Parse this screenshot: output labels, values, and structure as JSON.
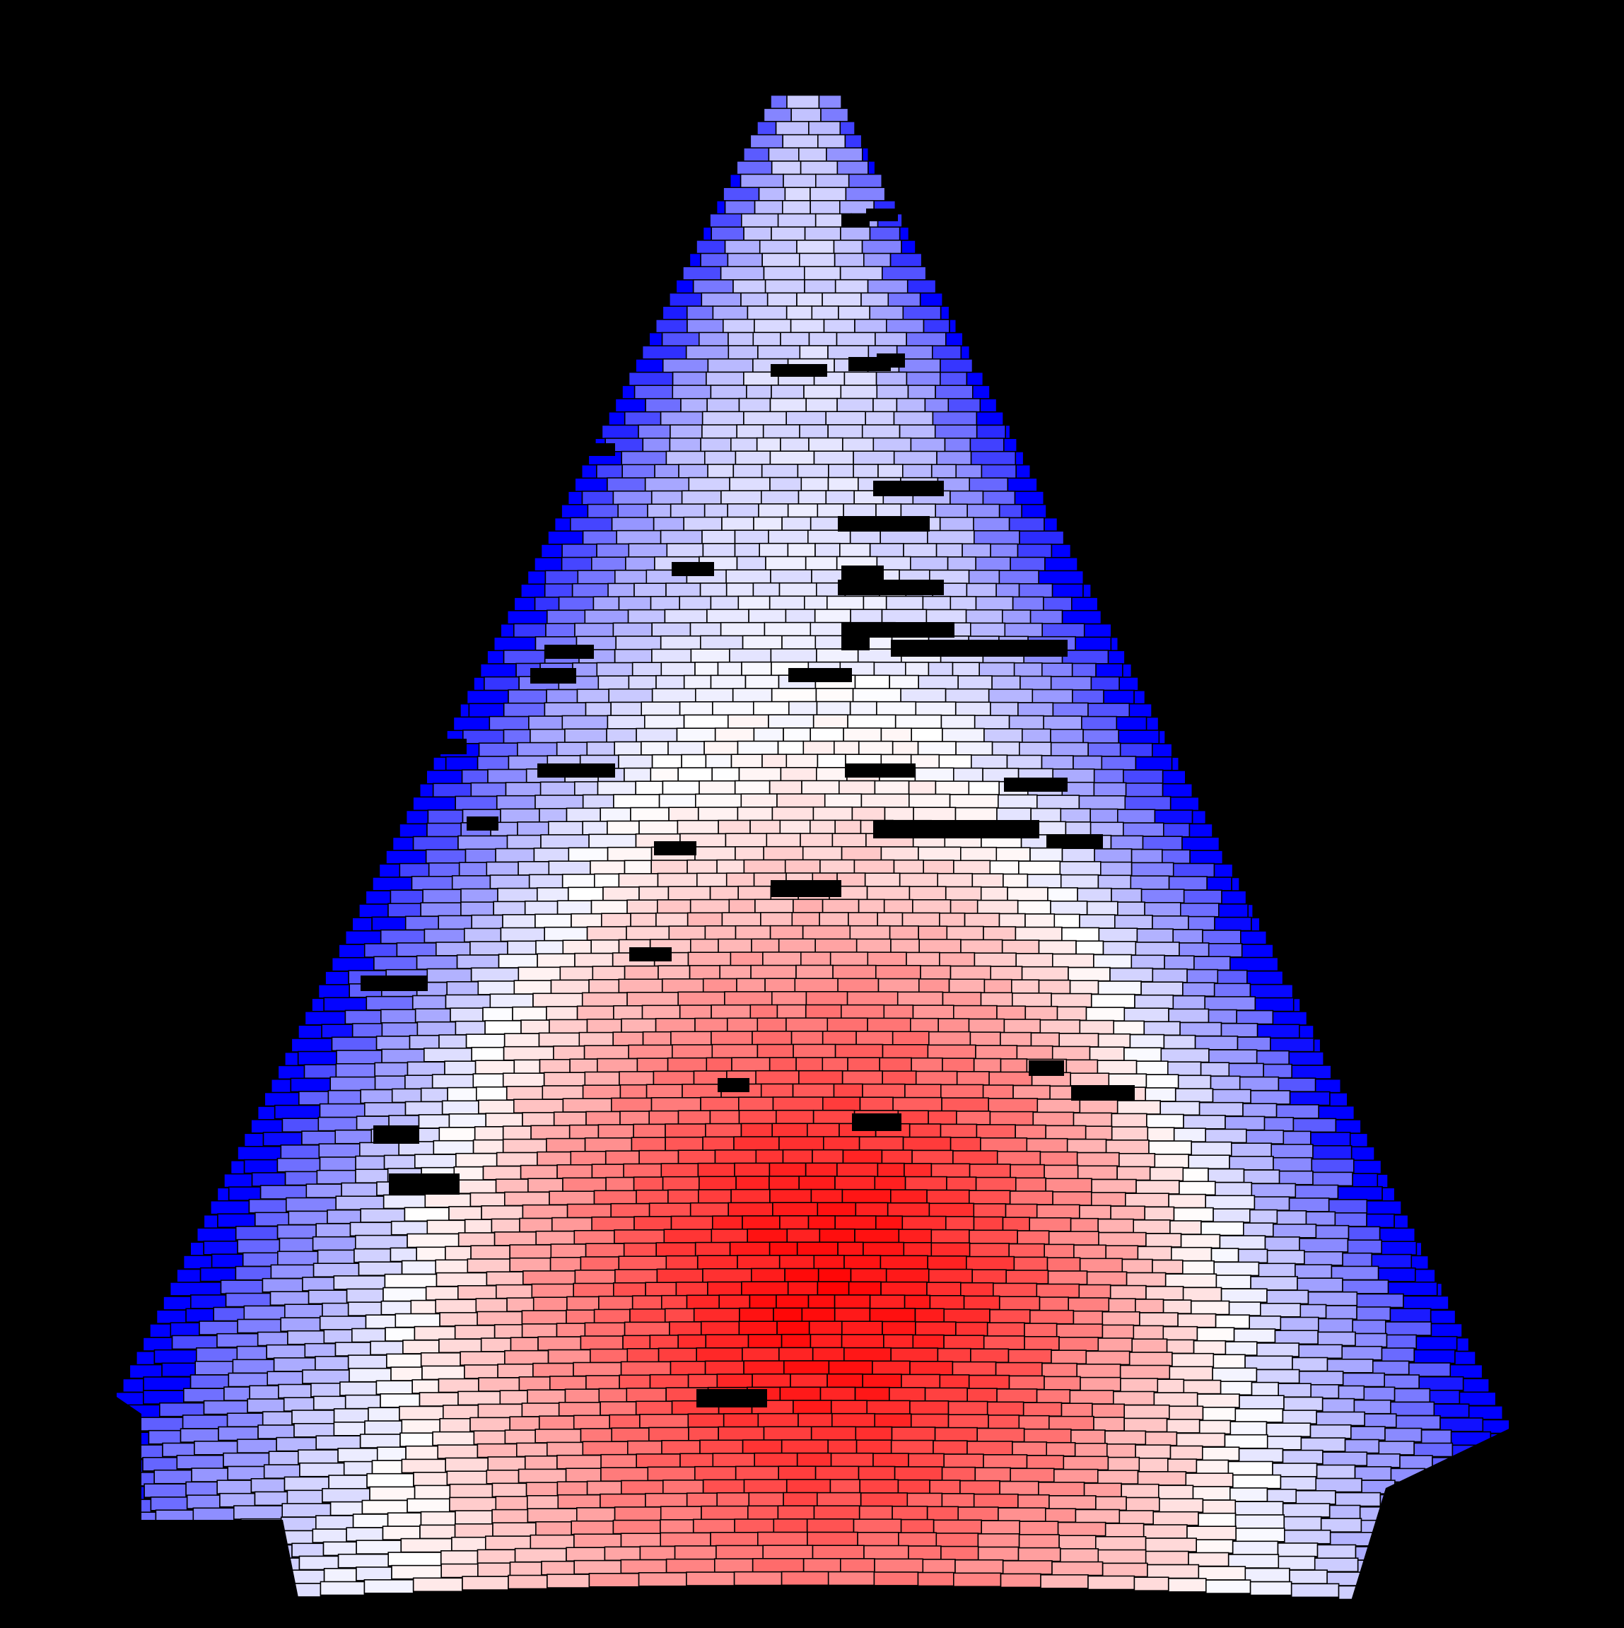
{
  "visualization": {
    "kind": "cell-mosaic",
    "background_color": "#000000",
    "cell_outline_color": "#000000",
    "colormap": {
      "low": "#0000ff",
      "mid": "#ffffff",
      "high": "#ff0000"
    },
    "missing_cell_color": "#000000"
  }
}
